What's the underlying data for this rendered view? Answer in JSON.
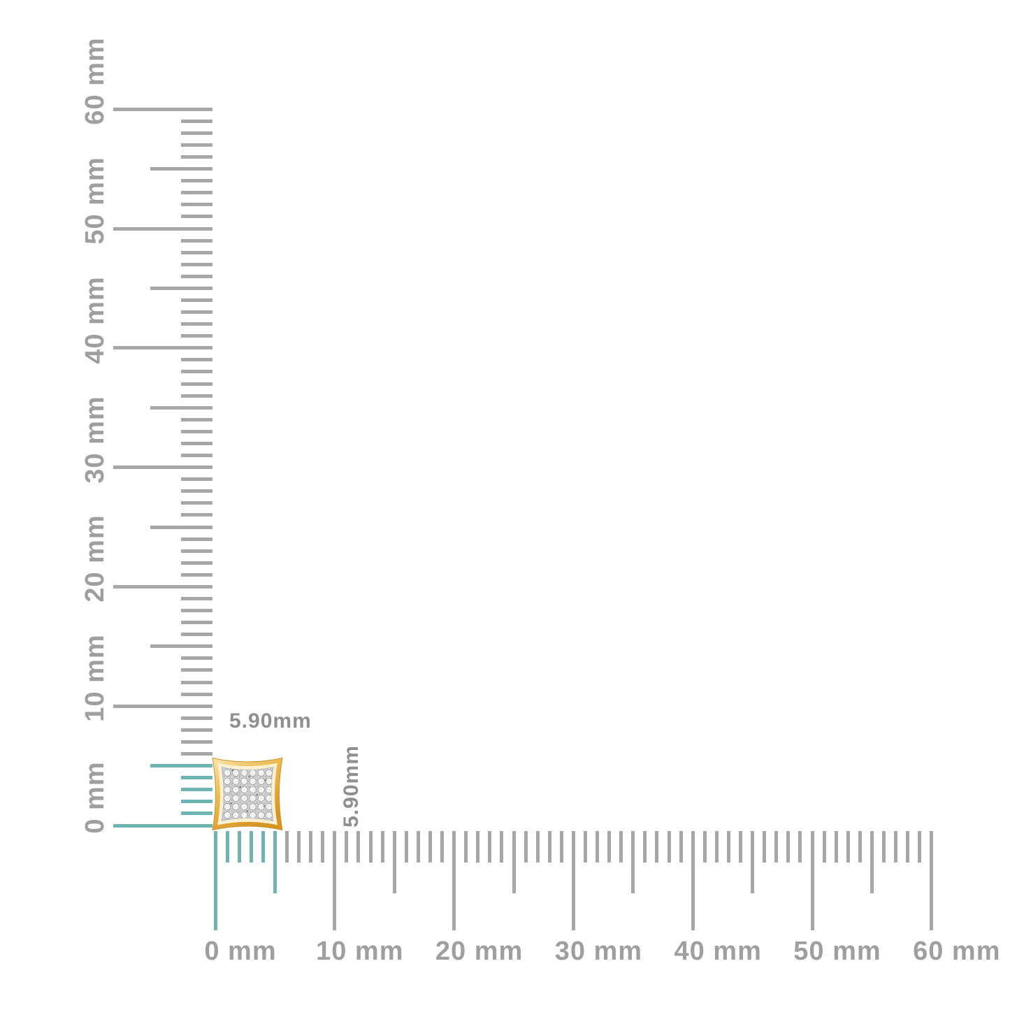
{
  "item_annotation": {
    "width_label": "5.90mm",
    "height_label": "5.90mm"
  },
  "rulers": {
    "unit": "mm",
    "range_mm": 60,
    "tick_step_mm": 1,
    "medium_tick_every_mm": 5,
    "labeled_tick_every_mm": 10,
    "highlight_span_mm": 5.9,
    "horizontal": {
      "labels": [
        "0 mm",
        "10 mm",
        "20 mm",
        "30 mm",
        "40 mm",
        "50 mm",
        "60 mm"
      ]
    },
    "vertical": {
      "labels": [
        "0 mm",
        "10 mm",
        "20 mm",
        "30 mm",
        "40 mm",
        "50 mm",
        "60 mm"
      ]
    },
    "colors": {
      "tick": "#a7a7a7",
      "highlight": "#6eb4b2",
      "label": "#9f9f9f",
      "annotation": "#8f8f8f"
    }
  },
  "item": {
    "icon": "diamond-kite-stud-earring-icon",
    "gold_color": "#e7b04a",
    "pave_color": "#dedede"
  }
}
